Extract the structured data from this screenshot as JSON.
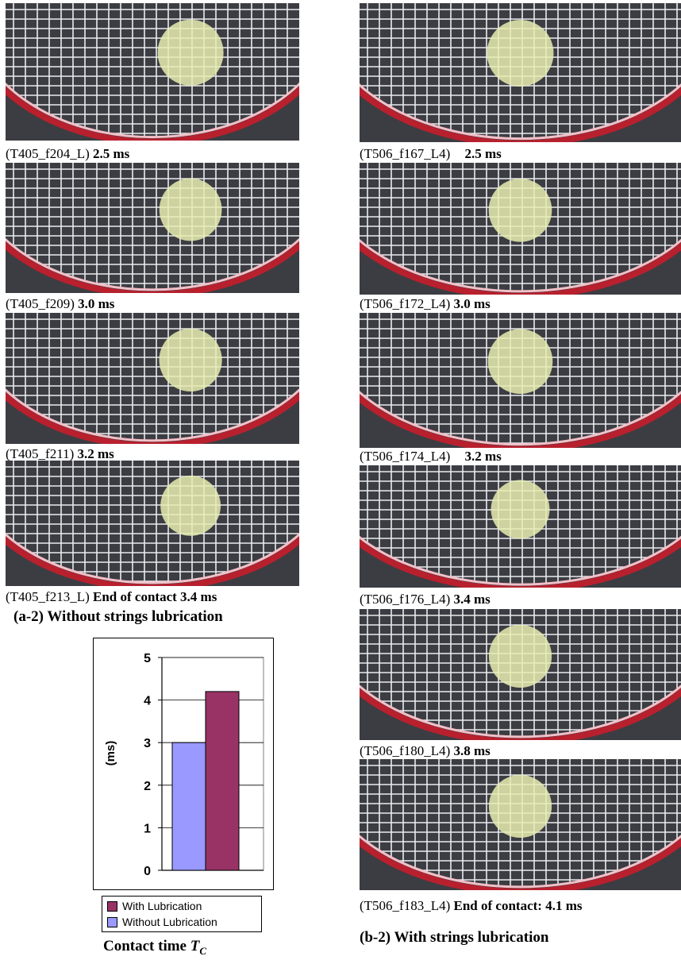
{
  "left_column": {
    "frames": [
      {
        "id": "T405_f204_L",
        "caption_id": "(T405_f204_L)",
        "time": "2.5 ms"
      },
      {
        "id": "T405_f209",
        "caption_id": "(T405_f209)",
        "time": "3.0 ms"
      },
      {
        "id": "T405_f211",
        "caption_id": "(T405_f211)",
        "time": "3.2 ms"
      },
      {
        "id": "T405_f213_L",
        "caption_id": "(T405_f213_L)",
        "time": "End of contact 3.4 ms"
      }
    ],
    "heading": "(a-2) Without strings lubrication"
  },
  "right_column": {
    "frames": [
      {
        "id": "T506_f167_L4",
        "caption_id": "(T506_f167_L4)",
        "time": "2.5 ms"
      },
      {
        "id": "T506_f172_L4",
        "caption_id": "(T506_f172_L4)",
        "time": "3.0 ms"
      },
      {
        "id": "T506_f174_L4",
        "caption_id": "(T506_f174_L4)",
        "time": "3.2 ms"
      },
      {
        "id": "T506_f176_L4",
        "caption_id": "(T506_f176_L4)",
        "time": "3.4 ms"
      },
      {
        "id": "T506_f180_L4",
        "caption_id": "(T506_f180_L4)",
        "time": "3.8 ms"
      },
      {
        "id": "T506_f183_L4",
        "caption_id": "(T506_f183_L4)",
        "time": "End of contact: 4.1 ms"
      }
    ],
    "heading": "(b-2) With strings lubrication"
  },
  "colors": {
    "frame_bg": "#3c3d42",
    "racket_frame": "#b8202e",
    "strings": "#e9ecef",
    "ball": "#e6ecb0",
    "with_lubrication": "#993366",
    "without_lubrication": "#9999ff"
  },
  "chart_data": {
    "type": "bar",
    "title_text": "Contact time ",
    "title_symbol": "T",
    "title_sub": "C",
    "ylabel": "(ms)",
    "ylim": [
      0,
      5
    ],
    "yticks": [
      0,
      1,
      2,
      3,
      4,
      5
    ],
    "grid": true,
    "legend_position": "bottom",
    "series": [
      {
        "name": "Without Lubrication",
        "values": [
          3.0
        ],
        "color": "#9999ff"
      },
      {
        "name": "With Lubrication",
        "values": [
          4.2
        ],
        "color": "#993366"
      }
    ],
    "legend": [
      {
        "label": "With Lubrication",
        "color": "#993366"
      },
      {
        "label": "Without Lubrication",
        "color": "#9999ff"
      }
    ]
  }
}
